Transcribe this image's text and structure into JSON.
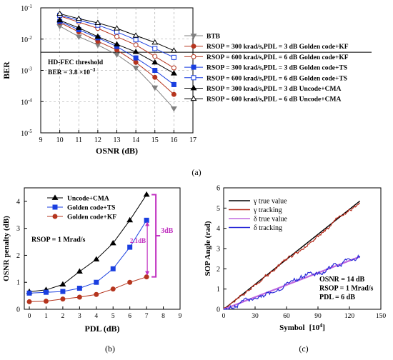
{
  "chart_data": [
    {
      "type": "line",
      "panel_label": "(a)",
      "xlabel": "OSNR (dB)",
      "ylabel": "BER",
      "xlim": [
        9,
        17
      ],
      "ylim": [
        1e-05,
        0.1
      ],
      "yscale": "log",
      "x_ticks": [
        9,
        10,
        11,
        12,
        13,
        14,
        15,
        16,
        17
      ],
      "y_ticks": [
        {
          "value": 1e-05,
          "label_base": "10",
          "label_exp": "-5"
        },
        {
          "value": 0.0001,
          "label_base": "10",
          "label_exp": "-4"
        },
        {
          "value": 0.001,
          "label_base": "10",
          "label_exp": "-3"
        },
        {
          "value": 0.01,
          "label_base": "10",
          "label_exp": "-2"
        },
        {
          "value": 0.1,
          "label_base": "10",
          "label_exp": "-1"
        }
      ],
      "threshold": {
        "value": 0.0038,
        "label_line1": "HD-FEC threshold",
        "label_line2": "BER = 3.8 ×10",
        "label_exp": "−3"
      },
      "legend_placement": "right",
      "x": [
        10,
        11,
        12,
        13,
        14,
        15,
        16
      ],
      "series": [
        {
          "name": "BTB",
          "color": "#808080",
          "marker": "triangle-down",
          "filled": true,
          "values": [
            0.026,
            0.012,
            0.0065,
            0.0032,
            0.0012,
            0.00028,
            6e-05
          ]
        },
        {
          "name": "RSOP = 300 krad/s,PDL = 3 dB Golden code+KF",
          "color": "#b5351e",
          "marker": "circle",
          "filled": true,
          "values": [
            0.034,
            0.017,
            0.0085,
            0.0045,
            0.0018,
            0.0006,
            0.00017
          ]
        },
        {
          "name": "RSOP = 600 krad/s,PDL = 6 dB Golden code+KF",
          "color": "#b5351e",
          "marker": "circle",
          "filled": false,
          "values": [
            0.055,
            0.035,
            0.022,
            0.012,
            0.0065,
            0.0028,
            0.0012
          ]
        },
        {
          "name": "RSOP = 300 krad/s,PDL = 3 dB Golden code+TS",
          "color": "#1a3fe0",
          "marker": "square",
          "filled": true,
          "values": [
            0.037,
            0.02,
            0.011,
            0.0058,
            0.0025,
            0.001,
            0.00035
          ]
        },
        {
          "name": "RSOP = 600 krad/s,PDL = 6 dB Golden code+TS",
          "color": "#1a3fe0",
          "marker": "square",
          "filled": false,
          "values": [
            0.058,
            0.04,
            0.028,
            0.017,
            0.0095,
            0.005,
            0.0026
          ]
        },
        {
          "name": "RSOP = 300 krad/s,PDL = 3 dB Uncode+CMA",
          "color": "#000000",
          "marker": "triangle-up",
          "filled": true,
          "values": [
            0.04,
            0.023,
            0.012,
            0.0068,
            0.0039,
            0.0018,
            0.0008
          ]
        },
        {
          "name": "RSOP = 600 krad/s,PDL = 6 dB Uncode+CMA",
          "color": "#000000",
          "marker": "triangle-up",
          "filled": false,
          "values": [
            0.065,
            0.045,
            0.033,
            0.022,
            0.013,
            0.0078,
            0.0043
          ]
        }
      ]
    },
    {
      "type": "line",
      "panel_label": "(b)",
      "xlabel": "PDL (dB)",
      "ylabel": "OSNR penalty (dB)",
      "xlim": [
        -0.3,
        9
      ],
      "ylim": [
        0,
        4.5
      ],
      "x_ticks": [
        0,
        1,
        2,
        3,
        4,
        5,
        6,
        7,
        8,
        9
      ],
      "y_ticks": [
        0,
        1,
        2,
        3,
        4
      ],
      "legend_placement": "top-left",
      "annotation_text": "RSOP = 1 Mrad/s",
      "annotation_color": "#c030c0",
      "annotation_gap_label": "2.1dB",
      "annotation_bracket_label": "3dB",
      "x": [
        0,
        1,
        2,
        3,
        4,
        5,
        6,
        7
      ],
      "series": [
        {
          "name": "Uncode+CMA",
          "color": "#000000",
          "marker": "triangle-up",
          "values": [
            0.65,
            0.72,
            0.92,
            1.4,
            1.85,
            2.45,
            3.3,
            4.25
          ]
        },
        {
          "name": "Golden code+TS",
          "color": "#1a3fe0",
          "marker": "square",
          "values": [
            0.6,
            0.63,
            0.66,
            0.78,
            1.0,
            1.5,
            2.3,
            3.3
          ]
        },
        {
          "name": "Golden code+KF",
          "color": "#b5351e",
          "marker": "circle",
          "values": [
            0.28,
            0.3,
            0.38,
            0.45,
            0.55,
            0.75,
            1.0,
            1.2
          ]
        }
      ]
    },
    {
      "type": "line",
      "panel_label": "(c)",
      "xlabel": "Symbol",
      "xlabel_unit": "[10",
      "xlabel_unit_exp": "4",
      "xlabel_unit_close": "]",
      "ylabel": "SOP Angle (rad)",
      "xlim": [
        0,
        150
      ],
      "ylim": [
        0,
        6
      ],
      "x_ticks": [
        0,
        30,
        60,
        90,
        120,
        150
      ],
      "y_ticks": [
        0,
        1,
        2,
        3,
        4,
        5,
        6
      ],
      "legend_placement": "top-left",
      "annotations": [
        "OSNR = 14 dB",
        "RSOP = 1 Mrad/s",
        "PDL = 6 dB"
      ],
      "series": [
        {
          "name": "γ true value",
          "color": "#000000",
          "x": [
            0,
            130
          ],
          "values": [
            0,
            5.35
          ]
        },
        {
          "name": "γ tracking",
          "color": "#b52a1a",
          "x": [
            0,
            130
          ],
          "values": [
            0,
            5.3
          ],
          "noise": 0.08
        },
        {
          "name": "δ true value",
          "color": "#c06ae0",
          "x": [
            0,
            130
          ],
          "values": [
            0,
            2.6
          ]
        },
        {
          "name": "δ tracking",
          "color": "#2a2ad8",
          "x": [
            0,
            130
          ],
          "values": [
            0,
            2.65
          ],
          "noise": 0.12
        }
      ]
    }
  ]
}
